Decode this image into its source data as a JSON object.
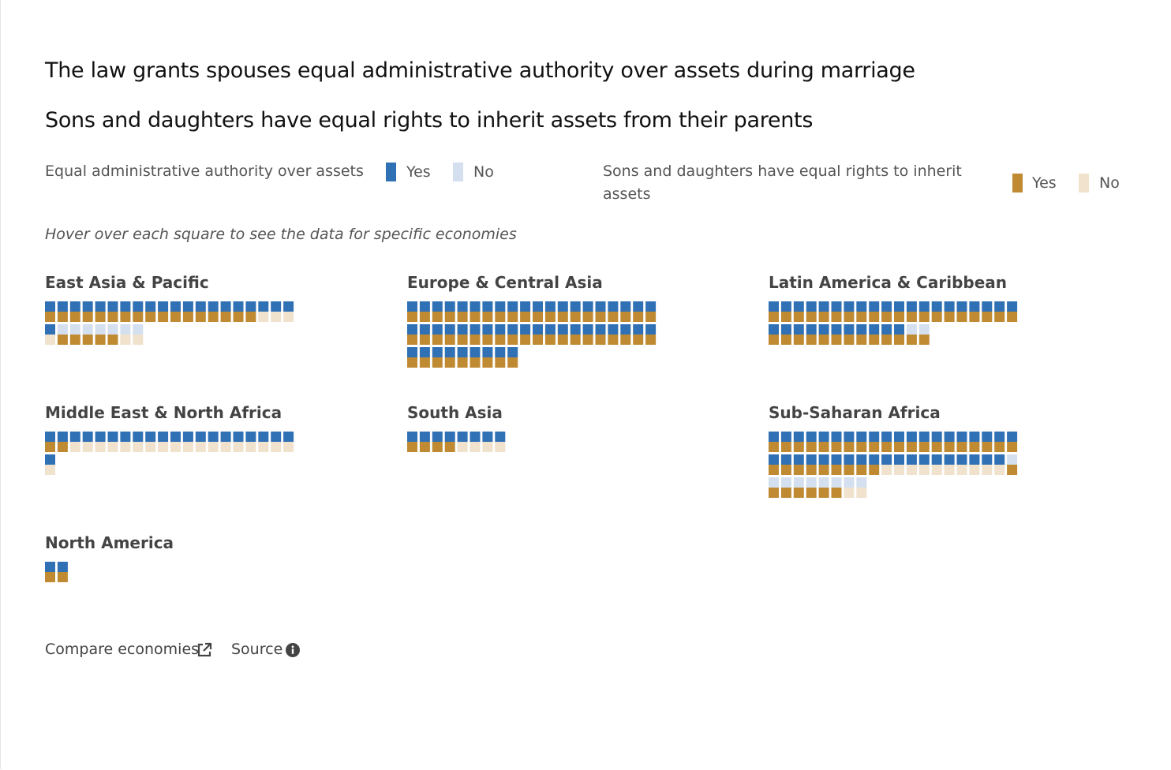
{
  "titles": [
    "The law grants spouses equal administrative authority over assets during marriage",
    "Sons and daughters have equal rights to inherit assets from their parents"
  ],
  "legend": {
    "admin": {
      "label": "Equal administrative authority over assets",
      "yes": "Yes",
      "no": "No"
    },
    "inherit": {
      "label": "Sons and daughters have equal rights to inherit assets",
      "yes": "Yes",
      "no": "No"
    }
  },
  "note": "Hover over each square to see the data for specific economies",
  "colors": {
    "admin_yes": "#3070b5",
    "admin_no": "#d4e0ef",
    "inherit_yes": "#c08a33",
    "inherit_no": "#f0e2cc"
  },
  "footer": {
    "compare_label": "Compare economies",
    "source_label": "Source",
    "compare_icon": "external-link-icon",
    "source_icon": "info-icon"
  },
  "chart_data": {
    "type": "waffle",
    "cells_per_row": 20,
    "encoding": "each economy = one square; top half = equal administrative authority (1 yes / 0 no); bottom half = equal inheritance rights (1 yes / 0 no)",
    "regions": [
      {
        "name": "East Asia & Pacific",
        "admin": [
          1,
          1,
          1,
          1,
          1,
          1,
          1,
          1,
          1,
          1,
          1,
          1,
          1,
          1,
          1,
          1,
          1,
          1,
          1,
          1,
          1,
          0,
          0,
          0,
          0,
          0,
          0,
          0
        ],
        "inherit": [
          1,
          1,
          1,
          1,
          1,
          1,
          1,
          1,
          1,
          1,
          1,
          1,
          1,
          1,
          1,
          1,
          1,
          0,
          0,
          0,
          0,
          1,
          1,
          1,
          1,
          1,
          0,
          0
        ]
      },
      {
        "name": "Europe & Central Asia",
        "admin": [
          1,
          1,
          1,
          1,
          1,
          1,
          1,
          1,
          1,
          1,
          1,
          1,
          1,
          1,
          1,
          1,
          1,
          1,
          1,
          1,
          1,
          1,
          1,
          1,
          1,
          1,
          1,
          1,
          1,
          1,
          1,
          1,
          1,
          1,
          1,
          1,
          1,
          1,
          1,
          1,
          1,
          1,
          1,
          1,
          1,
          1,
          1,
          1,
          1
        ],
        "inherit": [
          1,
          1,
          1,
          1,
          1,
          1,
          1,
          1,
          1,
          1,
          1,
          1,
          1,
          1,
          1,
          1,
          1,
          1,
          1,
          1,
          1,
          1,
          1,
          1,
          1,
          1,
          1,
          1,
          1,
          1,
          1,
          1,
          1,
          1,
          1,
          1,
          1,
          1,
          1,
          1,
          1,
          1,
          1,
          1,
          1,
          1,
          1,
          1,
          1
        ]
      },
      {
        "name": "Latin America & Caribbean",
        "admin": [
          1,
          1,
          1,
          1,
          1,
          1,
          1,
          1,
          1,
          1,
          1,
          1,
          1,
          1,
          1,
          1,
          1,
          1,
          1,
          1,
          1,
          1,
          1,
          1,
          1,
          1,
          1,
          1,
          1,
          1,
          1,
          0,
          0
        ],
        "inherit": [
          1,
          1,
          1,
          1,
          1,
          1,
          1,
          1,
          1,
          1,
          1,
          1,
          1,
          1,
          1,
          1,
          1,
          1,
          1,
          1,
          1,
          1,
          1,
          1,
          1,
          1,
          1,
          1,
          1,
          1,
          1,
          1,
          1
        ]
      },
      {
        "name": "Middle East & North Africa",
        "admin": [
          1,
          1,
          1,
          1,
          1,
          1,
          1,
          1,
          1,
          1,
          1,
          1,
          1,
          1,
          1,
          1,
          1,
          1,
          1,
          1,
          1
        ],
        "inherit": [
          1,
          1,
          0,
          0,
          0,
          0,
          0,
          0,
          0,
          0,
          0,
          0,
          0,
          0,
          0,
          0,
          0,
          0,
          0,
          0,
          0
        ]
      },
      {
        "name": "South Asia",
        "admin": [
          1,
          1,
          1,
          1,
          1,
          1,
          1,
          1
        ],
        "inherit": [
          1,
          1,
          1,
          1,
          0,
          0,
          0,
          0
        ]
      },
      {
        "name": "Sub-Saharan Africa",
        "admin": [
          1,
          1,
          1,
          1,
          1,
          1,
          1,
          1,
          1,
          1,
          1,
          1,
          1,
          1,
          1,
          1,
          1,
          1,
          1,
          1,
          1,
          1,
          1,
          1,
          1,
          1,
          1,
          1,
          1,
          1,
          1,
          1,
          1,
          1,
          1,
          1,
          1,
          1,
          1,
          0,
          0,
          0,
          0,
          0,
          0,
          0,
          0,
          0
        ],
        "inherit": [
          1,
          1,
          1,
          1,
          1,
          1,
          1,
          1,
          1,
          1,
          1,
          1,
          1,
          1,
          1,
          1,
          1,
          1,
          1,
          1,
          1,
          1,
          1,
          1,
          1,
          1,
          1,
          1,
          1,
          0,
          0,
          0,
          0,
          0,
          0,
          0,
          0,
          0,
          0,
          1,
          1,
          1,
          1,
          1,
          1,
          1,
          0,
          0
        ]
      },
      {
        "name": "North America",
        "admin": [
          1,
          1
        ],
        "inherit": [
          1,
          1
        ]
      }
    ]
  }
}
